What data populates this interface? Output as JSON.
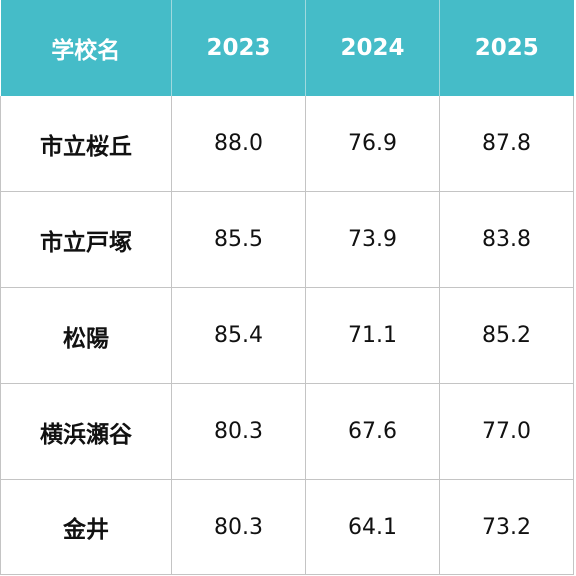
{
  "chart_data": {
    "type": "table",
    "columns": [
      "学校名",
      "2023",
      "2024",
      "2025"
    ],
    "rows": [
      {
        "school": "市立桜丘",
        "values": [
          "88.0",
          "76.9",
          "87.8"
        ]
      },
      {
        "school": "市立戸塚",
        "values": [
          "85.5",
          "73.9",
          "83.8"
        ]
      },
      {
        "school": "松陽",
        "values": [
          "85.4",
          "71.1",
          "85.2"
        ]
      },
      {
        "school": "横浜瀬谷",
        "values": [
          "80.3",
          "67.6",
          "77.0"
        ]
      },
      {
        "school": "金井",
        "values": [
          "80.3",
          "64.1",
          "73.2"
        ]
      }
    ]
  },
  "colors": {
    "header_background": "#45bcc8",
    "header_text": "#ffffff",
    "grid_line": "#c4c4c4",
    "cell_text": "#111111"
  }
}
